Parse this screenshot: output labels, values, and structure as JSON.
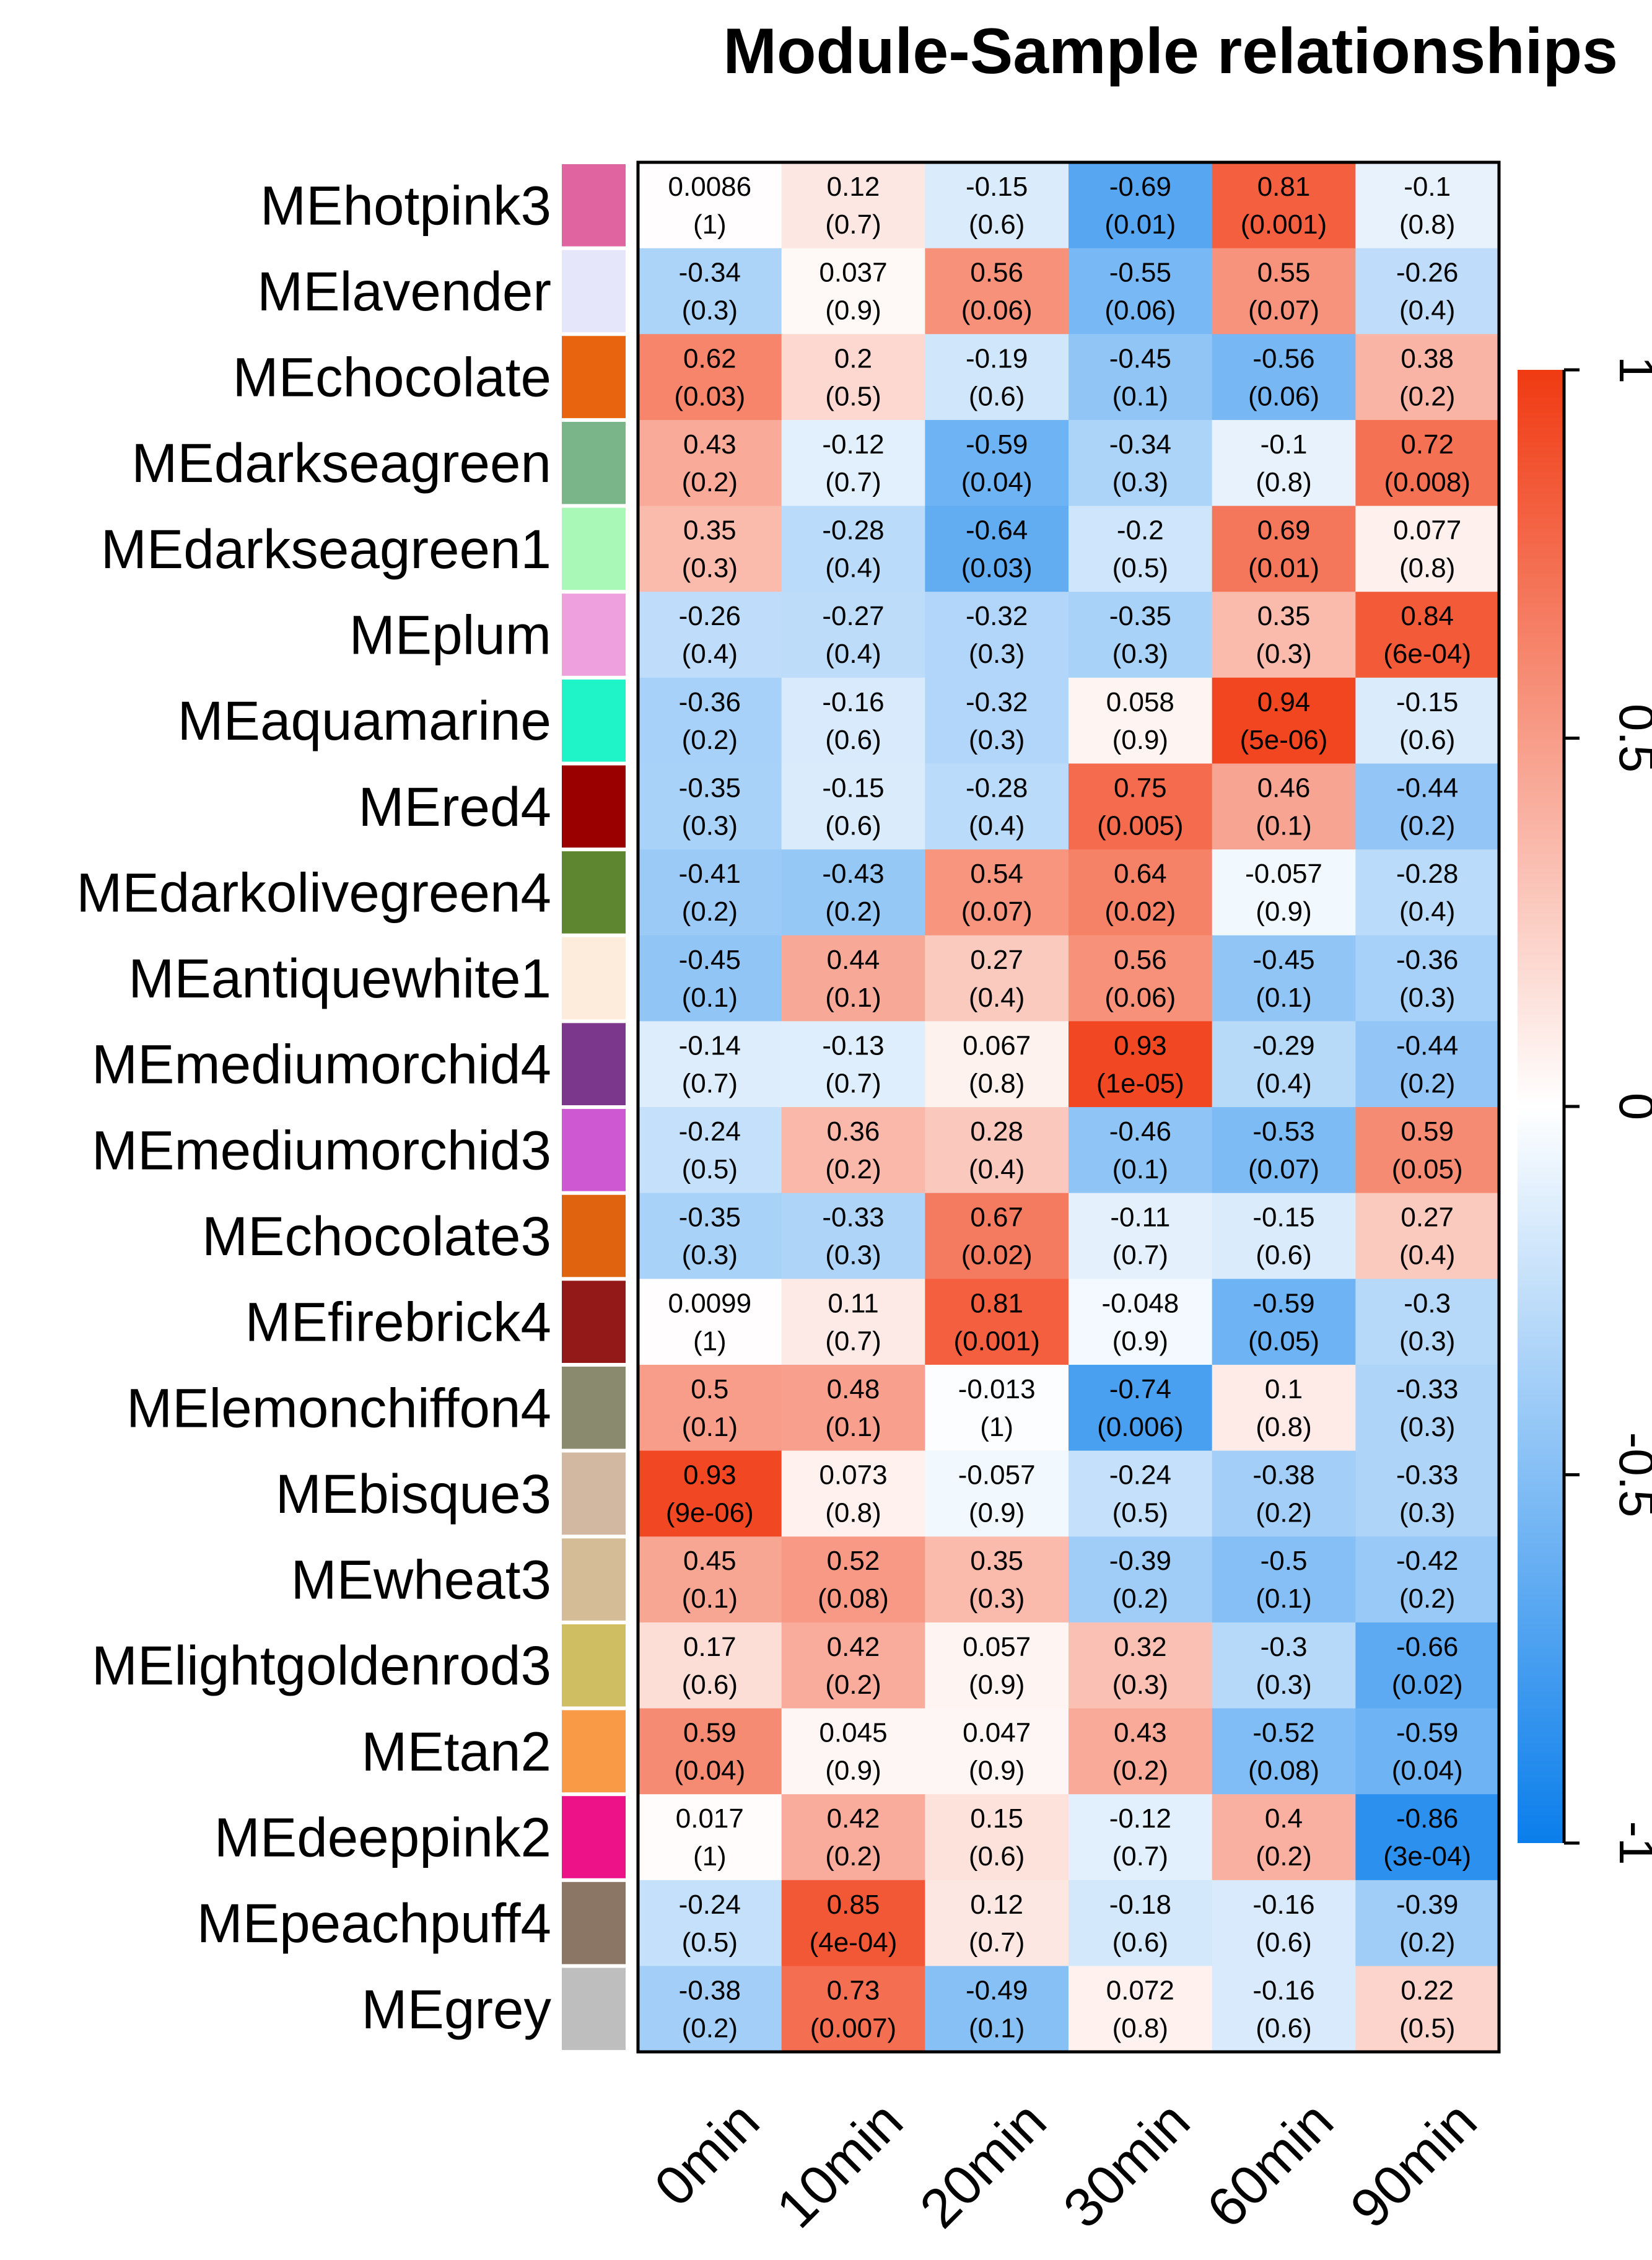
{
  "chart_data": {
    "type": "heatmap",
    "title": "Module-Sample relationships",
    "columns": [
      "0min",
      "10min",
      "20min",
      "30min",
      "60min",
      "90min"
    ],
    "rows": [
      {
        "label": "MEhotpink3",
        "color": "#E064A0",
        "corr": [
          0.0086,
          0.12,
          -0.15,
          -0.69,
          0.81,
          -0.1
        ],
        "corr_text": [
          "0.0086",
          "0.12",
          "-0.15",
          "-0.69",
          "0.81",
          "-0.1"
        ],
        "p_text": [
          "(1)",
          "(0.7)",
          "(0.6)",
          "(0.01)",
          "(0.001)",
          "(0.8)"
        ]
      },
      {
        "label": "MElavender",
        "color": "#E6E6FA",
        "corr": [
          -0.34,
          0.037,
          0.56,
          -0.55,
          0.55,
          -0.26
        ],
        "corr_text": [
          "-0.34",
          "0.037",
          "0.56",
          "-0.55",
          "0.55",
          "-0.26"
        ],
        "p_text": [
          "(0.3)",
          "(0.9)",
          "(0.06)",
          "(0.06)",
          "(0.07)",
          "(0.4)"
        ]
      },
      {
        "label": "MEchocolate",
        "color": "#E8640F",
        "corr": [
          0.62,
          0.2,
          -0.19,
          -0.45,
          -0.56,
          0.38
        ],
        "corr_text": [
          "0.62",
          "0.2",
          "-0.19",
          "-0.45",
          "-0.56",
          "0.38"
        ],
        "p_text": [
          "(0.03)",
          "(0.5)",
          "(0.6)",
          "(0.1)",
          "(0.06)",
          "(0.2)"
        ]
      },
      {
        "label": "MEdarkseagreen",
        "color": "#7AB58A",
        "corr": [
          0.43,
          -0.12,
          -0.59,
          -0.34,
          -0.1,
          0.72
        ],
        "corr_text": [
          "0.43",
          "-0.12",
          "-0.59",
          "-0.34",
          "-0.1",
          "0.72"
        ],
        "p_text": [
          "(0.2)",
          "(0.7)",
          "(0.04)",
          "(0.3)",
          "(0.8)",
          "(0.008)"
        ]
      },
      {
        "label": "MEdarkseagreen1",
        "color": "#A9F8B8",
        "corr": [
          0.35,
          -0.28,
          -0.64,
          -0.2,
          0.69,
          0.077
        ],
        "corr_text": [
          "0.35",
          "-0.28",
          "-0.64",
          "-0.2",
          "0.69",
          "0.077"
        ],
        "p_text": [
          "(0.3)",
          "(0.4)",
          "(0.03)",
          "(0.5)",
          "(0.01)",
          "(0.8)"
        ]
      },
      {
        "label": "MEplum",
        "color": "#EEA0DE",
        "corr": [
          -0.26,
          -0.27,
          -0.32,
          -0.35,
          0.35,
          0.84
        ],
        "corr_text": [
          "-0.26",
          "-0.27",
          "-0.32",
          "-0.35",
          "0.35",
          "0.84"
        ],
        "p_text": [
          "(0.4)",
          "(0.4)",
          "(0.3)",
          "(0.3)",
          "(0.3)",
          "(6e-04)"
        ]
      },
      {
        "label": "MEaquamarine",
        "color": "#1EF4C8",
        "corr": [
          -0.36,
          -0.16,
          -0.32,
          0.058,
          0.94,
          -0.15
        ],
        "corr_text": [
          "-0.36",
          "-0.16",
          "-0.32",
          "0.058",
          "0.94",
          "-0.15"
        ],
        "p_text": [
          "(0.2)",
          "(0.6)",
          "(0.3)",
          "(0.9)",
          "(5e-06)",
          "(0.6)"
        ]
      },
      {
        "label": "MEred4",
        "color": "#9A0000",
        "corr": [
          -0.35,
          -0.15,
          -0.28,
          0.75,
          0.46,
          -0.44
        ],
        "corr_text": [
          "-0.35",
          "-0.15",
          "-0.28",
          "0.75",
          "0.46",
          "-0.44"
        ],
        "p_text": [
          "(0.3)",
          "(0.6)",
          "(0.4)",
          "(0.005)",
          "(0.1)",
          "(0.2)"
        ]
      },
      {
        "label": "MEdarkolivegreen4",
        "color": "#5E8530",
        "corr": [
          -0.41,
          -0.43,
          0.54,
          0.64,
          -0.057,
          -0.28
        ],
        "corr_text": [
          "-0.41",
          "-0.43",
          "0.54",
          "0.64",
          "-0.057",
          "-0.28"
        ],
        "p_text": [
          "(0.2)",
          "(0.2)",
          "(0.07)",
          "(0.02)",
          "(0.9)",
          "(0.4)"
        ]
      },
      {
        "label": "MEantiquewhite1",
        "color": "#FDEBDB",
        "corr": [
          -0.45,
          0.44,
          0.27,
          0.56,
          -0.45,
          -0.36
        ],
        "corr_text": [
          "-0.45",
          "0.44",
          "0.27",
          "0.56",
          "-0.45",
          "-0.36"
        ],
        "p_text": [
          "(0.1)",
          "(0.1)",
          "(0.4)",
          "(0.06)",
          "(0.1)",
          "(0.3)"
        ]
      },
      {
        "label": "MEmediumorchid4",
        "color": "#7B378B",
        "corr": [
          -0.14,
          -0.13,
          0.067,
          0.93,
          -0.29,
          -0.44
        ],
        "corr_text": [
          "-0.14",
          "-0.13",
          "0.067",
          "0.93",
          "-0.29",
          "-0.44"
        ],
        "p_text": [
          "(0.7)",
          "(0.7)",
          "(0.8)",
          "(1e-05)",
          "(0.4)",
          "(0.2)"
        ]
      },
      {
        "label": "MEmediumorchid3",
        "color": "#CE58D2",
        "corr": [
          -0.24,
          0.36,
          0.28,
          -0.46,
          -0.53,
          0.59
        ],
        "corr_text": [
          "-0.24",
          "0.36",
          "0.28",
          "-0.46",
          "-0.53",
          "0.59"
        ],
        "p_text": [
          "(0.5)",
          "(0.2)",
          "(0.4)",
          "(0.1)",
          "(0.07)",
          "(0.05)"
        ]
      },
      {
        "label": "MEchocolate3",
        "color": "#E0640F",
        "corr": [
          -0.35,
          -0.33,
          0.67,
          -0.11,
          -0.15,
          0.27
        ],
        "corr_text": [
          "-0.35",
          "-0.33",
          "0.67",
          "-0.11",
          "-0.15",
          "0.27"
        ],
        "p_text": [
          "(0.3)",
          "(0.3)",
          "(0.02)",
          "(0.7)",
          "(0.6)",
          "(0.4)"
        ]
      },
      {
        "label": "MEfirebrick4",
        "color": "#931919",
        "corr": [
          0.0099,
          0.11,
          0.81,
          -0.048,
          -0.59,
          -0.3
        ],
        "corr_text": [
          "0.0099",
          "0.11",
          "0.81",
          "-0.048",
          "-0.59",
          "-0.3"
        ],
        "p_text": [
          "(1)",
          "(0.7)",
          "(0.001)",
          "(0.9)",
          "(0.05)",
          "(0.3)"
        ]
      },
      {
        "label": "MElemonchiffon4",
        "color": "#8A8A6E",
        "corr": [
          0.5,
          0.48,
          -0.013,
          -0.74,
          0.1,
          -0.33
        ],
        "corr_text": [
          "0.5",
          "0.48",
          "-0.013",
          "-0.74",
          "0.1",
          "-0.33"
        ],
        "p_text": [
          "(0.1)",
          "(0.1)",
          "(1)",
          "(0.006)",
          "(0.8)",
          "(0.3)"
        ]
      },
      {
        "label": "MEbisque3",
        "color": "#D2B8A0",
        "corr": [
          0.93,
          0.073,
          -0.057,
          -0.24,
          -0.38,
          -0.33
        ],
        "corr_text": [
          "0.93",
          "0.073",
          "-0.057",
          "-0.24",
          "-0.38",
          "-0.33"
        ],
        "p_text": [
          "(9e-06)",
          "(0.8)",
          "(0.9)",
          "(0.5)",
          "(0.2)",
          "(0.3)"
        ]
      },
      {
        "label": "MEwheat3",
        "color": "#D4BC96",
        "corr": [
          0.45,
          0.52,
          0.35,
          -0.39,
          -0.5,
          -0.42
        ],
        "corr_text": [
          "0.45",
          "0.52",
          "0.35",
          "-0.39",
          "-0.5",
          "-0.42"
        ],
        "p_text": [
          "(0.1)",
          "(0.08)",
          "(0.3)",
          "(0.2)",
          "(0.1)",
          "(0.2)"
        ]
      },
      {
        "label": "MElightgoldenrod3",
        "color": "#CFBE62",
        "corr": [
          0.17,
          0.42,
          0.057,
          0.32,
          -0.3,
          -0.66
        ],
        "corr_text": [
          "0.17",
          "0.42",
          "0.057",
          "0.32",
          "-0.3",
          "-0.66"
        ],
        "p_text": [
          "(0.6)",
          "(0.2)",
          "(0.9)",
          "(0.3)",
          "(0.3)",
          "(0.02)"
        ]
      },
      {
        "label": "MEtan2",
        "color": "#F89A46",
        "corr": [
          0.59,
          0.045,
          0.047,
          0.43,
          -0.52,
          -0.59
        ],
        "corr_text": [
          "0.59",
          "0.045",
          "0.047",
          "0.43",
          "-0.52",
          "-0.59"
        ],
        "p_text": [
          "(0.04)",
          "(0.9)",
          "(0.9)",
          "(0.2)",
          "(0.08)",
          "(0.04)"
        ]
      },
      {
        "label": "MEdeeppink2",
        "color": "#EE1289",
        "corr": [
          0.017,
          0.42,
          0.15,
          -0.12,
          0.4,
          -0.86
        ],
        "corr_text": [
          "0.017",
          "0.42",
          "0.15",
          "-0.12",
          "0.4",
          "-0.86"
        ],
        "p_text": [
          "(1)",
          "(0.2)",
          "(0.6)",
          "(0.7)",
          "(0.2)",
          "(3e-04)"
        ]
      },
      {
        "label": "MEpeachpuff4",
        "color": "#8B7665",
        "corr": [
          -0.24,
          0.85,
          0.12,
          -0.18,
          -0.16,
          -0.39
        ],
        "corr_text": [
          "-0.24",
          "0.85",
          "0.12",
          "-0.18",
          "-0.16",
          "-0.39"
        ],
        "p_text": [
          "(0.5)",
          "(4e-04)",
          "(0.7)",
          "(0.6)",
          "(0.6)",
          "(0.2)"
        ]
      },
      {
        "label": "MEgrey",
        "color": "#BEBEBE",
        "corr": [
          -0.38,
          0.73,
          -0.49,
          0.072,
          -0.16,
          0.22
        ],
        "corr_text": [
          "-0.38",
          "0.73",
          "-0.49",
          "0.072",
          "-0.16",
          "0.22"
        ],
        "p_text": [
          "(0.2)",
          "(0.007)",
          "(0.1)",
          "(0.8)",
          "(0.6)",
          "(0.5)"
        ]
      }
    ],
    "colorbar": {
      "range": [
        -1,
        1
      ],
      "ticks": [
        1,
        0.5,
        0,
        -0.5,
        -1
      ],
      "tick_labels": [
        "1",
        "0.5",
        "0",
        "-0.5",
        "-1"
      ],
      "low_color": "#0A7EEB",
      "mid_color": "#FFFFFF",
      "high_color": "#F03A12"
    }
  }
}
